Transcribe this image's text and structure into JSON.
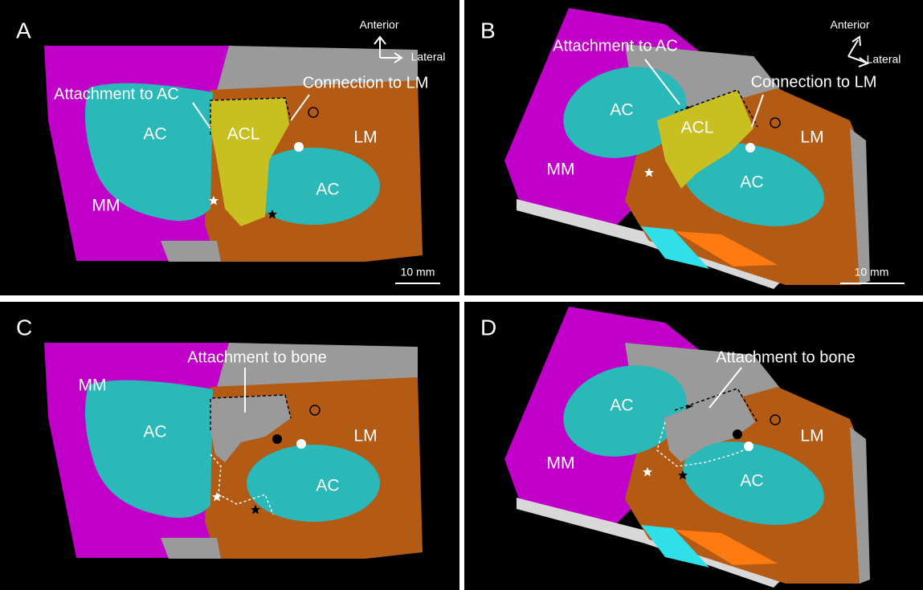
{
  "panels": [
    {
      "label": "A",
      "orientation": {
        "anterior": "Anterior",
        "lateral": "Lateral"
      },
      "annotations": [
        "Attachment to AC",
        "Connection to LM"
      ],
      "regions": [
        "AC",
        "ACL",
        "LM",
        "AC",
        "MM"
      ],
      "scale_bar": "10 mm"
    },
    {
      "label": "B",
      "orientation": {
        "anterior": "Anterior",
        "lateral": "Lateral"
      },
      "annotations": [
        "Attachment to AC",
        "Connection to LM"
      ],
      "regions": [
        "AC",
        "ACL",
        "LM",
        "MM",
        "AC"
      ],
      "scale_bar": "10 mm"
    },
    {
      "label": "C",
      "annotations": [
        "Attachment to bone"
      ],
      "regions": [
        "MM",
        "AC",
        "LM",
        "AC"
      ]
    },
    {
      "label": "D",
      "annotations": [
        "Attachment to bone"
      ],
      "regions": [
        "AC",
        "LM",
        "MM",
        "AC"
      ]
    }
  ]
}
